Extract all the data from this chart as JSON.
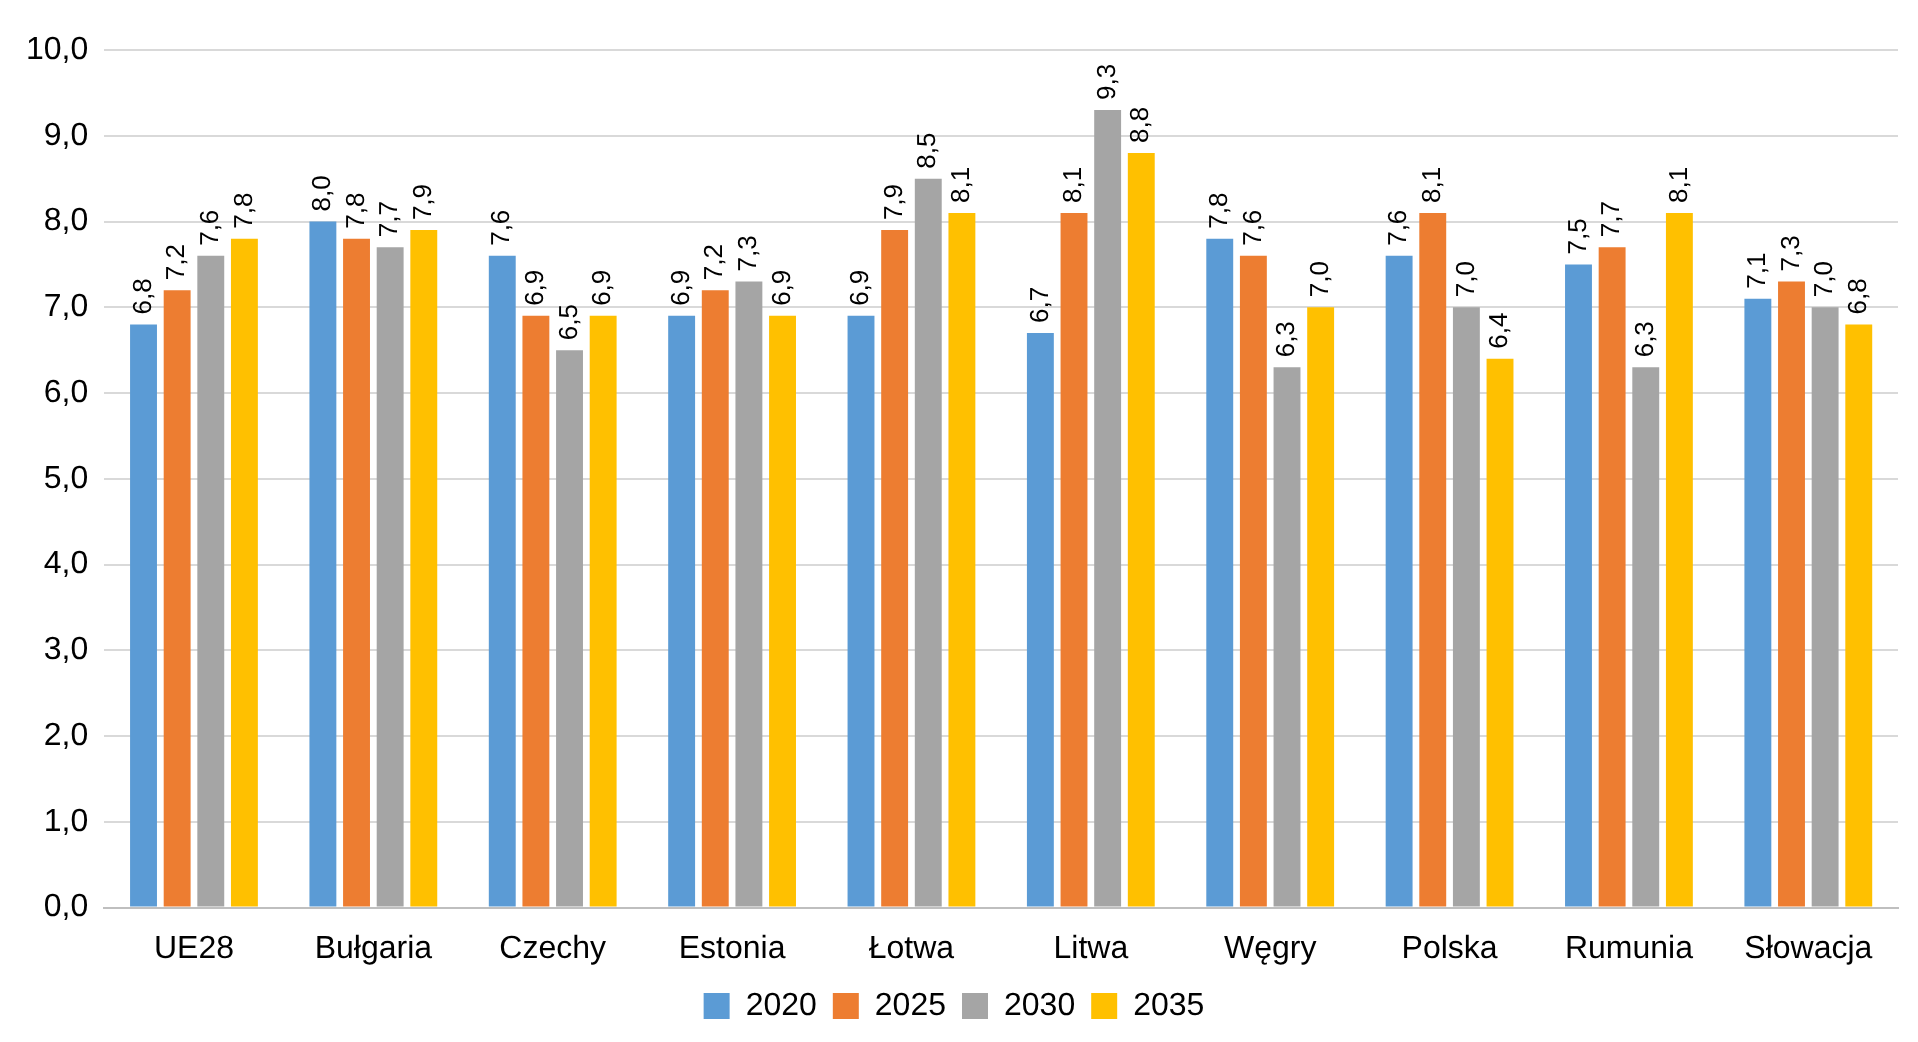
{
  "chart_data": {
    "type": "bar",
    "categories": [
      "UE28",
      "Bułgaria",
      "Czechy",
      "Estonia",
      "Łotwa",
      "Litwa",
      "Węgry",
      "Polska",
      "Rumunia",
      "Słowacja"
    ],
    "series": [
      {
        "name": "2020",
        "color": "#5b9bd5",
        "values": [
          6.8,
          8.0,
          7.6,
          6.9,
          6.9,
          6.7,
          7.8,
          7.6,
          7.5,
          7.1
        ],
        "value_labels": [
          "6,8",
          "8,0",
          "7,6",
          "6,9",
          "6,9",
          "6,7",
          "7,8",
          "7,6",
          "7,5",
          "7,1"
        ]
      },
      {
        "name": "2025",
        "color": "#ed7d31",
        "values": [
          7.2,
          7.8,
          6.9,
          7.2,
          7.9,
          8.1,
          7.6,
          8.1,
          7.7,
          7.3
        ],
        "value_labels": [
          "7,2",
          "7,8",
          "6,9",
          "7,2",
          "7,9",
          "8,1",
          "7,6",
          "8,1",
          "7,7",
          "7,3"
        ]
      },
      {
        "name": "2030",
        "color": "#a5a5a5",
        "values": [
          7.6,
          7.7,
          6.5,
          7.3,
          8.5,
          9.3,
          6.3,
          7.0,
          6.3,
          7.0
        ],
        "value_labels": [
          "7,6",
          "7,7",
          "6,5",
          "7,3",
          "8,5",
          "9,3",
          "6,3",
          "7,0",
          "6,3",
          "7,0"
        ]
      },
      {
        "name": "2035",
        "color": "#ffc000",
        "values": [
          7.8,
          7.9,
          6.9,
          6.9,
          8.1,
          8.8,
          7.0,
          6.4,
          8.1,
          6.8
        ],
        "value_labels": [
          "7,8",
          "7,9",
          "6,9",
          "6,9",
          "8,1",
          "8,8",
          "7,0",
          "6,4",
          "8,1",
          "6,8"
        ]
      }
    ],
    "ylim": [
      0,
      10
    ],
    "yticks": [
      {
        "value": 0,
        "label": "0,0"
      },
      {
        "value": 1,
        "label": "1,0"
      },
      {
        "value": 2,
        "label": "2,0"
      },
      {
        "value": 3,
        "label": "3,0"
      },
      {
        "value": 4,
        "label": "4,0"
      },
      {
        "value": 5,
        "label": "5,0"
      },
      {
        "value": 6,
        "label": "6,0"
      },
      {
        "value": 7,
        "label": "7,0"
      },
      {
        "value": 8,
        "label": "8,0"
      },
      {
        "value": 9,
        "label": "9,0"
      },
      {
        "value": 10,
        "label": "10,0"
      }
    ],
    "grid": "y",
    "legend": "bottom"
  }
}
